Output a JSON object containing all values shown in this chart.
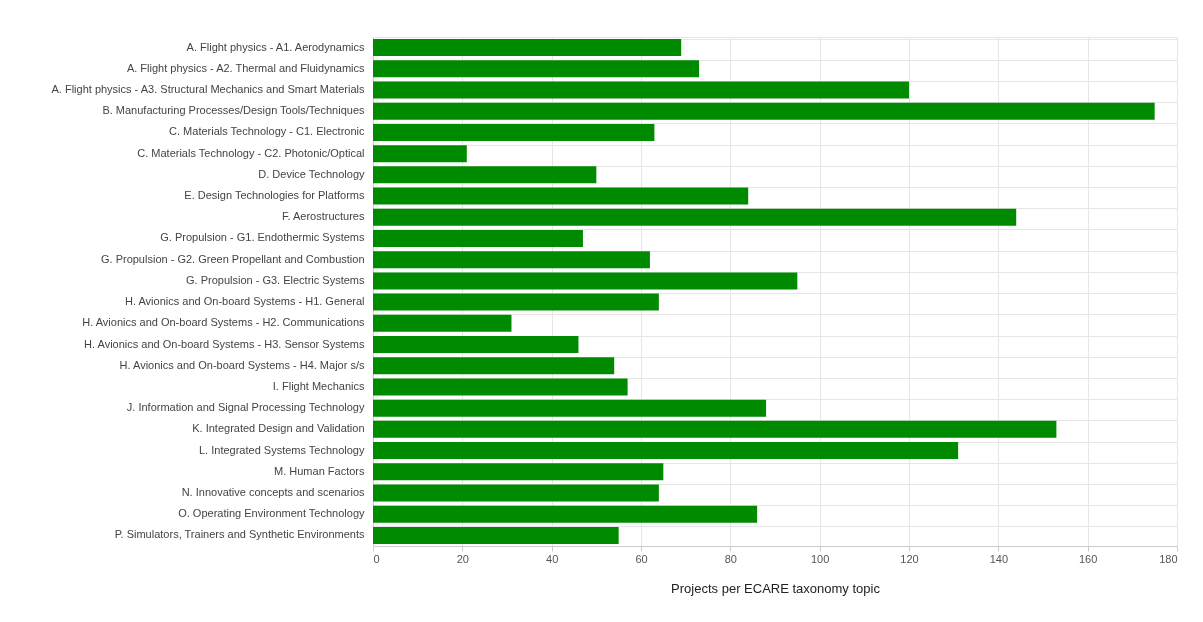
{
  "chart_data": {
    "type": "bar",
    "orientation": "horizontal",
    "xlabel": "Projects per ECARE taxonomy topic",
    "categories": [
      "A. Flight physics - A1. Aerodynamics",
      "A. Flight physics - A2. Thermal and Fluidynamics",
      "A. Flight physics - A3. Structural Mechanics and Smart Materials",
      "B. Manufacturing Processes/Design Tools/Techniques",
      "C. Materials Technology - C1. Electronic",
      "C. Materials Technology - C2. Photonic/Optical",
      "D. Device Technology",
      "E. Design Technologies for Platforms",
      "F. Aerostructures",
      "G. Propulsion - G1. Endothermic Systems",
      "G. Propulsion - G2. Green Propellant and Combustion",
      "G. Propulsion - G3. Electric Systems",
      "H. Avionics and On-board Systems - H1. General",
      "H. Avionics and On-board Systems - H2. Communications",
      "H. Avionics and On-board Systems - H3. Sensor Systems",
      "H. Avionics and On-board Systems - H4. Major s/s",
      "I. Flight Mechanics",
      "J. Information and Signal Processing Technology",
      "K. Integrated Design and Validation",
      "L. Integrated Systems Technology",
      "M. Human Factors",
      "N. Innovative concepts and scenarios",
      "O. Operating Environment Technology",
      "P. Simulators, Trainers and Synthetic Environments"
    ],
    "values": [
      69,
      73,
      120,
      175,
      63,
      21,
      50,
      84,
      144,
      47,
      62,
      95,
      64,
      31,
      46,
      54,
      57,
      88,
      153,
      131,
      65,
      64,
      86,
      55
    ],
    "color": "#008a00",
    "xlim": [
      0,
      180
    ],
    "xticks": [
      0,
      20,
      40,
      60,
      80,
      100,
      120,
      140,
      160,
      180
    ],
    "grid": true
  }
}
